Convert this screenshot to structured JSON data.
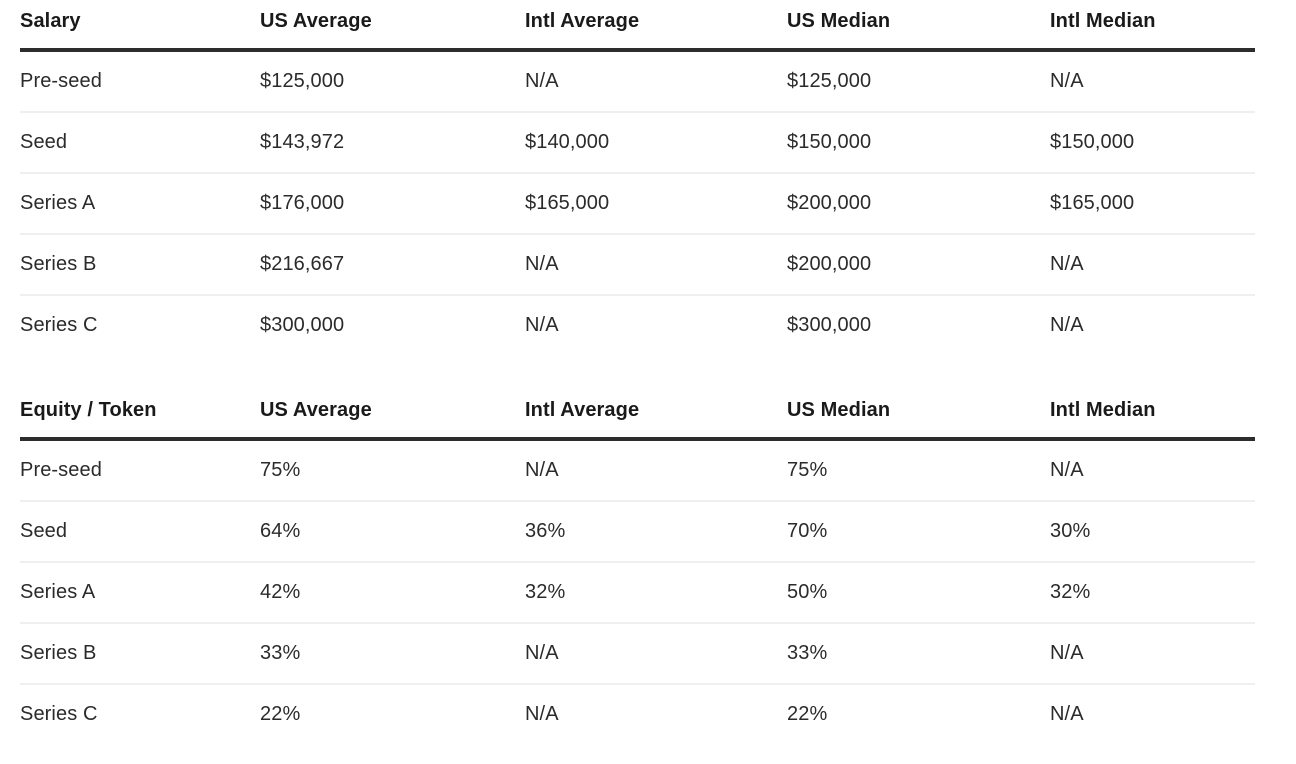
{
  "tables": [
    {
      "id": "salary",
      "header": {
        "label": "Salary",
        "columns": [
          "US Average",
          "Intl Average",
          "US Median",
          "Intl Median"
        ]
      },
      "rows": [
        {
          "label": "Pre-seed",
          "values": [
            "$125,000",
            "N/A",
            "$125,000",
            "N/A"
          ]
        },
        {
          "label": "Seed",
          "values": [
            "$143,972",
            "$140,000",
            "$150,000",
            "$150,000"
          ]
        },
        {
          "label": "Series A",
          "values": [
            "$176,000",
            "$165,000",
            "$200,000",
            "$165,000"
          ]
        },
        {
          "label": "Series B",
          "values": [
            "$216,667",
            "N/A",
            "$200,000",
            "N/A"
          ]
        },
        {
          "label": "Series C",
          "values": [
            "$300,000",
            "N/A",
            "$300,000",
            "N/A"
          ]
        }
      ]
    },
    {
      "id": "equity-token",
      "header": {
        "label": "Equity / Token",
        "columns": [
          "US Average",
          "Intl Average",
          "US Median",
          "Intl Median"
        ]
      },
      "rows": [
        {
          "label": "Pre-seed",
          "values": [
            "75%",
            "N/A",
            "75%",
            "N/A"
          ]
        },
        {
          "label": "Seed",
          "values": [
            "64%",
            "36%",
            "70%",
            "30%"
          ]
        },
        {
          "label": "Series A",
          "values": [
            "42%",
            "32%",
            "50%",
            "32%"
          ]
        },
        {
          "label": "Series B",
          "values": [
            "33%",
            "N/A",
            "33%",
            "N/A"
          ]
        },
        {
          "label": "Series C",
          "values": [
            "22%",
            "N/A",
            "22%",
            "N/A"
          ]
        }
      ]
    }
  ],
  "colors": {
    "header_border": "#2d2d2d",
    "row_separator": "#efefef",
    "header_text": "#1a1a1a",
    "body_text": "#2b2b2b",
    "background": "#ffffff"
  }
}
